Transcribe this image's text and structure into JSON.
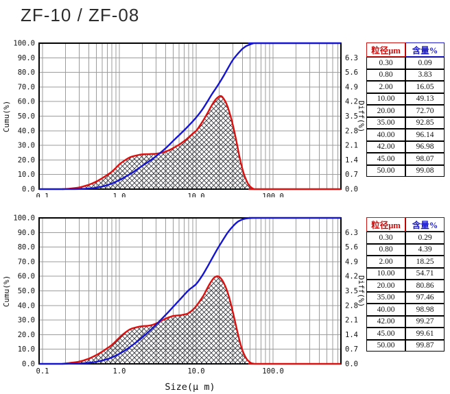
{
  "title": "ZF-10 / ZF-08",
  "colors": {
    "cumulative_line": "#1515d0",
    "differential_line": "#dd1010",
    "grid": "#9b9b9b",
    "axis_border": "#000000",
    "hatch_line": "#2a2a33",
    "tick_text": "#111111",
    "size_header": "#cc1111",
    "content_header": "#1b1bcc"
  },
  "axes": {
    "left_label": "Cumu(%)",
    "right_label": "Diff(%)",
    "x_label": "Size(μ m)",
    "x_scale": "log",
    "xlim": [
      0.09,
      760
    ],
    "left_range": [
      0,
      100
    ],
    "right_range": [
      0,
      7
    ],
    "grid": "on",
    "x_ticks": [
      {
        "v": 0.1,
        "label": "0.1"
      },
      {
        "v": 1,
        "label": "1.0"
      },
      {
        "v": 10,
        "label": "10.0"
      },
      {
        "v": 100,
        "label": "100.0"
      }
    ],
    "left_ticks": [
      {
        "p": 100,
        "label": "100.0"
      },
      {
        "p": 90,
        "label": "90.0"
      },
      {
        "p": 80,
        "label": "80.0"
      },
      {
        "p": 70,
        "label": "70.0"
      },
      {
        "p": 60,
        "label": "60.0"
      },
      {
        "p": 50,
        "label": "50.0"
      },
      {
        "p": 40,
        "label": "40.0"
      },
      {
        "p": 30,
        "label": "30.0"
      },
      {
        "p": 20,
        "label": "20.0"
      },
      {
        "p": 10,
        "label": "10.0"
      },
      {
        "p": 0,
        "label": "0.0"
      }
    ],
    "right_ticks": [
      {
        "p": 90,
        "label": "6.3"
      },
      {
        "p": 80,
        "label": "5.6"
      },
      {
        "p": 70,
        "label": "4.9"
      },
      {
        "p": 60,
        "label": "4.2"
      },
      {
        "p": 50,
        "label": "3.5"
      },
      {
        "p": 40,
        "label": "2.8"
      },
      {
        "p": 30,
        "label": "2.1"
      },
      {
        "p": 20,
        "label": "1.4"
      },
      {
        "p": 10,
        "label": "0.7"
      },
      {
        "p": 0,
        "label": "0.0"
      }
    ]
  },
  "chart_data": [
    {
      "id": "chart-top",
      "type": "line",
      "x_scale": "log",
      "series": [
        {
          "name": "cumulative",
          "axis": "left",
          "color_key": "cumulative_line",
          "points": [
            [
              0.09,
              0
            ],
            [
              0.15,
              0
            ],
            [
              0.2,
              0.03
            ],
            [
              0.3,
              0.09
            ],
            [
              0.4,
              0.4
            ],
            [
              0.5,
              1.0
            ],
            [
              0.6,
              1.8
            ],
            [
              0.7,
              2.8
            ],
            [
              0.8,
              3.83
            ],
            [
              1.0,
              6.2
            ],
            [
              1.2,
              8.5
            ],
            [
              1.5,
              11.5
            ],
            [
              2.0,
              16.05
            ],
            [
              2.5,
              19.5
            ],
            [
              3.0,
              22.5
            ],
            [
              4.0,
              28
            ],
            [
              5.0,
              33
            ],
            [
              6.0,
              37
            ],
            [
              8.0,
              43.5
            ],
            [
              10.0,
              49.13
            ],
            [
              12,
              54.5
            ],
            [
              14,
              60
            ],
            [
              16,
              65
            ],
            [
              18,
              69
            ],
            [
              20,
              72.7
            ],
            [
              23,
              78
            ],
            [
              26,
              83
            ],
            [
              30,
              88.5
            ],
            [
              35,
              92.85
            ],
            [
              40,
              96.14
            ],
            [
              42,
              96.98
            ],
            [
              45,
              98.07
            ],
            [
              50,
              99.08
            ],
            [
              55,
              99.8
            ],
            [
              60,
              100
            ],
            [
              760,
              100
            ]
          ]
        },
        {
          "name": "differential",
          "axis": "right",
          "color_key": "differential_line",
          "fill": "crosshatch",
          "points": [
            [
              0.18,
              0
            ],
            [
              0.22,
              0.02
            ],
            [
              0.3,
              0.08
            ],
            [
              0.4,
              0.21
            ],
            [
              0.5,
              0.36
            ],
            [
              0.6,
              0.53
            ],
            [
              0.7,
              0.69
            ],
            [
              0.8,
              0.84
            ],
            [
              0.9,
              1.02
            ],
            [
              1.0,
              1.19
            ],
            [
              1.2,
              1.4
            ],
            [
              1.4,
              1.54
            ],
            [
              1.7,
              1.62
            ],
            [
              2.0,
              1.67
            ],
            [
              2.4,
              1.68
            ],
            [
              3.0,
              1.7
            ],
            [
              3.6,
              1.75
            ],
            [
              4.4,
              1.86
            ],
            [
              5.2,
              2.0
            ],
            [
              6.2,
              2.17
            ],
            [
              7.4,
              2.38
            ],
            [
              8.8,
              2.63
            ],
            [
              10,
              2.8
            ],
            [
              11,
              3.01
            ],
            [
              12.5,
              3.33
            ],
            [
              14,
              3.64
            ],
            [
              16,
              4.03
            ],
            [
              18,
              4.31
            ],
            [
              20,
              4.45
            ],
            [
              21,
              4.47
            ],
            [
              22,
              4.41
            ],
            [
              24,
              4.2
            ],
            [
              26,
              3.89
            ],
            [
              28,
              3.5
            ],
            [
              30,
              3.08
            ],
            [
              33,
              2.38
            ],
            [
              36,
              1.68
            ],
            [
              39,
              1.12
            ],
            [
              42,
              0.7
            ],
            [
              45,
              0.42
            ],
            [
              48,
              0.22
            ],
            [
              52,
              0.08
            ],
            [
              56,
              0.01
            ],
            [
              60,
              0
            ],
            [
              760,
              0
            ]
          ]
        }
      ],
      "table": {
        "headers": [
          "粒径μm",
          "含量%"
        ],
        "rows": [
          [
            "0.30",
            "0.09"
          ],
          [
            "0.80",
            "3.83"
          ],
          [
            "2.00",
            "16.05"
          ],
          [
            "10.00",
            "49.13"
          ],
          [
            "20.00",
            "72.70"
          ],
          [
            "35.00",
            "92.85"
          ],
          [
            "40.00",
            "96.14"
          ],
          [
            "42.00",
            "96.98"
          ],
          [
            "45.00",
            "98.07"
          ],
          [
            "50.00",
            "99.08"
          ]
        ]
      }
    },
    {
      "id": "chart-bottom",
      "type": "line",
      "x_scale": "log",
      "series": [
        {
          "name": "cumulative",
          "axis": "left",
          "color_key": "cumulative_line",
          "points": [
            [
              0.09,
              0
            ],
            [
              0.15,
              0
            ],
            [
              0.2,
              0.06
            ],
            [
              0.3,
              0.29
            ],
            [
              0.4,
              0.7
            ],
            [
              0.5,
              1.4
            ],
            [
              0.6,
              2.3
            ],
            [
              0.7,
              3.3
            ],
            [
              0.8,
              4.39
            ],
            [
              1.0,
              6.9
            ],
            [
              1.2,
              9.4
            ],
            [
              1.5,
              13
            ],
            [
              2.0,
              18.25
            ],
            [
              2.5,
              22.8
            ],
            [
              3.0,
              26.8
            ],
            [
              4.0,
              33.5
            ],
            [
              5.0,
              39
            ],
            [
              6.0,
              43.5
            ],
            [
              8.0,
              50.5
            ],
            [
              10,
              54.71
            ],
            [
              12,
              60.5
            ],
            [
              14,
              66.5
            ],
            [
              16,
              72
            ],
            [
              18,
              76.8
            ],
            [
              20,
              80.86
            ],
            [
              23,
              86
            ],
            [
              26,
              90.3
            ],
            [
              30,
              94.2
            ],
            [
              35,
              97.46
            ],
            [
              40,
              98.98
            ],
            [
              42,
              99.27
            ],
            [
              45,
              99.61
            ],
            [
              50,
              99.87
            ],
            [
              55,
              99.97
            ],
            [
              60,
              100
            ],
            [
              760,
              100
            ]
          ]
        },
        {
          "name": "differential",
          "axis": "right",
          "color_key": "differential_line",
          "fill": "crosshatch",
          "points": [
            [
              0.18,
              0
            ],
            [
              0.22,
              0.04
            ],
            [
              0.3,
              0.11
            ],
            [
              0.4,
              0.25
            ],
            [
              0.5,
              0.42
            ],
            [
              0.6,
              0.59
            ],
            [
              0.7,
              0.76
            ],
            [
              0.8,
              0.91
            ],
            [
              0.9,
              1.09
            ],
            [
              1.0,
              1.26
            ],
            [
              1.2,
              1.51
            ],
            [
              1.4,
              1.67
            ],
            [
              1.7,
              1.76
            ],
            [
              2.0,
              1.81
            ],
            [
              2.4,
              1.83
            ],
            [
              2.8,
              1.89
            ],
            [
              3.4,
              2.03
            ],
            [
              4.0,
              2.17
            ],
            [
              4.8,
              2.28
            ],
            [
              5.6,
              2.32
            ],
            [
              6.6,
              2.35
            ],
            [
              7.8,
              2.42
            ],
            [
              9,
              2.59
            ],
            [
              10,
              2.77
            ],
            [
              11,
              2.98
            ],
            [
              12.5,
              3.29
            ],
            [
              14,
              3.64
            ],
            [
              15.5,
              3.92
            ],
            [
              17,
              4.12
            ],
            [
              18.5,
              4.2
            ],
            [
              20,
              4.17
            ],
            [
              22,
              3.99
            ],
            [
              24,
              3.71
            ],
            [
              26,
              3.36
            ],
            [
              28,
              2.94
            ],
            [
              30,
              2.49
            ],
            [
              33,
              1.82
            ],
            [
              36,
              1.23
            ],
            [
              39,
              0.77
            ],
            [
              42,
              0.46
            ],
            [
              45,
              0.25
            ],
            [
              48,
              0.13
            ],
            [
              52,
              0.04
            ],
            [
              56,
              0.01
            ],
            [
              60,
              0
            ],
            [
              760,
              0
            ]
          ]
        }
      ],
      "table": {
        "headers": [
          "粒径μm",
          "含量%"
        ],
        "rows": [
          [
            "0.30",
            "0.29"
          ],
          [
            "0.80",
            "4.39"
          ],
          [
            "2.00",
            "18.25"
          ],
          [
            "10.00",
            "54.71"
          ],
          [
            "20.00",
            "80.86"
          ],
          [
            "35.00",
            "97.46"
          ],
          [
            "40.00",
            "98.98"
          ],
          [
            "42.00",
            "99.27"
          ],
          [
            "45.00",
            "99.61"
          ],
          [
            "50.00",
            "99.87"
          ]
        ]
      }
    }
  ]
}
